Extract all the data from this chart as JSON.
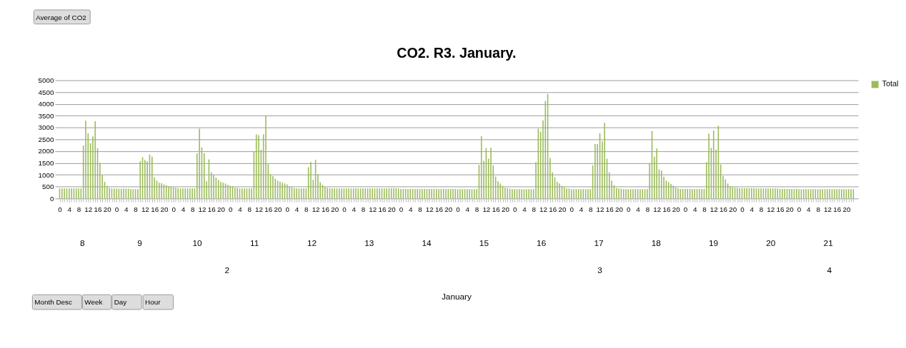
{
  "chart_data": {
    "type": "bar",
    "title": "CO2. R3. January.",
    "categories": [
      "0",
      null,
      null,
      null,
      "4",
      null,
      null,
      null,
      "8",
      null,
      null,
      null,
      "12",
      null,
      null,
      null,
      "16",
      null,
      null,
      null,
      "20",
      null,
      null,
      null,
      "0",
      null,
      null,
      null,
      "4",
      null,
      null,
      null,
      "8",
      null,
      null,
      null,
      "12",
      null,
      null,
      null,
      "16",
      null,
      null,
      null,
      "20",
      null,
      null,
      null,
      "0",
      null,
      null,
      null,
      "4",
      null,
      null,
      null,
      "8",
      null,
      null,
      null,
      "12",
      null,
      null,
      null,
      "16",
      null,
      null,
      null,
      "20",
      null,
      null,
      null,
      "0",
      null,
      null,
      null,
      "4",
      null,
      null,
      null,
      "8",
      null,
      null,
      null,
      "12",
      null,
      null,
      null,
      "16",
      null,
      null,
      null,
      "20",
      null,
      null,
      null,
      "0",
      null,
      null,
      null,
      "4",
      null,
      null,
      null,
      "8",
      null,
      null,
      null,
      "12",
      null,
      null,
      null,
      "16",
      null,
      null,
      null,
      "20",
      null,
      null,
      null,
      "0",
      null,
      null,
      null,
      "4",
      null,
      null,
      null,
      "8",
      null,
      null,
      null,
      "12",
      null,
      null,
      null,
      "16",
      null,
      null,
      null,
      "20",
      null,
      null,
      null,
      "0",
      null,
      null,
      null,
      "4",
      null,
      null,
      null,
      "8",
      null,
      null,
      null,
      "12",
      null,
      null,
      null,
      "16",
      null,
      null,
      null,
      "20",
      null,
      null,
      null,
      "0",
      null,
      null,
      null,
      "4",
      null,
      null,
      null,
      "8",
      null,
      null,
      null,
      "12",
      null,
      null,
      null,
      "16",
      null,
      null,
      null,
      "20",
      null,
      null,
      null,
      "0",
      null,
      null,
      null,
      "4",
      null,
      null,
      null,
      "8",
      null,
      null,
      null,
      "12",
      null,
      null,
      null,
      "16",
      null,
      null,
      null,
      "20",
      null,
      null,
      null,
      "0",
      null,
      null,
      null,
      "4",
      null,
      null,
      null,
      "8",
      null,
      null,
      null,
      "12",
      null,
      null,
      null,
      "16",
      null,
      null,
      null,
      "20",
      null,
      null,
      null,
      "0",
      null,
      null,
      null,
      "4",
      null,
      null,
      null,
      "8",
      null,
      null,
      null,
      "12",
      null,
      null,
      null,
      "16",
      null,
      null,
      null,
      "20",
      null,
      null,
      null,
      "0",
      null,
      null,
      null,
      "4",
      null,
      null,
      null,
      "8",
      null,
      null,
      null,
      "12",
      null,
      null,
      null,
      "16",
      null,
      null,
      null,
      "20",
      null,
      null,
      null,
      "0",
      null,
      null,
      null,
      "4",
      null,
      null,
      null,
      "8",
      null,
      null,
      null,
      "12",
      null,
      null,
      null,
      "16",
      null,
      null,
      null,
      "20",
      null,
      null,
      null,
      "0",
      null,
      null,
      null,
      "4",
      null,
      null,
      null,
      "8",
      null,
      null,
      null,
      "12",
      null,
      null,
      null,
      "16",
      null,
      null,
      null,
      "20",
      null,
      null,
      null
    ],
    "series": [
      {
        "name": "Total",
        "color": "#9bbb59",
        "values": [
          420,
          420,
          420,
          420,
          420,
          420,
          420,
          420,
          420,
          420,
          2235,
          3290,
          2755,
          2330,
          2625,
          3265,
          2125,
          1500,
          980,
          700,
          530,
          440,
          420,
          420,
          410,
          410,
          410,
          410,
          410,
          410,
          390,
          390,
          390,
          390,
          1570,
          1745,
          1630,
          1570,
          1860,
          1765,
          890,
          755,
          665,
          645,
          590,
          560,
          510,
          490,
          470,
          450,
          430,
          420,
          420,
          420,
          420,
          420,
          420,
          420,
          1910,
          2950,
          2160,
          1910,
          725,
          1650,
          1100,
          980,
          880,
          775,
          700,
          665,
          630,
          570,
          530,
          510,
          450,
          450,
          420,
          420,
          420,
          420,
          420,
          420,
          1990,
          2710,
          2680,
          2060,
          2710,
          3490,
          1450,
          1030,
          940,
          830,
          755,
          705,
          665,
          630,
          590,
          510,
          470,
          430,
          420,
          420,
          420,
          420,
          420,
          1320,
          1540,
          785,
          1630,
          1030,
          685,
          570,
          480,
          440,
          430,
          420,
          420,
          420,
          420,
          420,
          420,
          420,
          420,
          420,
          420,
          420,
          420,
          420,
          420,
          420,
          420,
          420,
          420,
          420,
          420,
          420,
          420,
          420,
          420,
          430,
          430,
          430,
          430,
          420,
          400,
          400,
          400,
          400,
          400,
          400,
          400,
          400,
          400,
          400,
          400,
          400,
          400,
          400,
          400,
          400,
          400,
          400,
          400,
          400,
          400,
          400,
          400,
          400,
          390,
          390,
          390,
          390,
          390,
          390,
          390,
          390,
          390,
          1420,
          2630,
          1590,
          2130,
          1680,
          2140,
          1400,
          920,
          725,
          630,
          530,
          450,
          430,
          410,
          390,
          390,
          390,
          390,
          390,
          390,
          390,
          390,
          390,
          390,
          1540,
          2950,
          2820,
          3300,
          4120,
          4420,
          1710,
          1100,
          890,
          700,
          630,
          530,
          470,
          420,
          420,
          390,
          390,
          390,
          390,
          390,
          390,
          390,
          390,
          390,
          1400,
          2300,
          2300,
          2760,
          2410,
          3200,
          1680,
          1100,
          755,
          560,
          440,
          420,
          410,
          390,
          390,
          390,
          390,
          390,
          390,
          390,
          390,
          390,
          390,
          390,
          1490,
          2850,
          1765,
          2110,
          1225,
          1185,
          920,
          755,
          685,
          610,
          540,
          480,
          430,
          400,
          400,
          400,
          400,
          400,
          400,
          400,
          400,
          400,
          400,
          400,
          1540,
          2745,
          2140,
          2870,
          2060,
          3070,
          1430,
          950,
          800,
          630,
          510,
          470,
          450,
          440,
          430,
          430,
          430,
          430,
          430,
          430,
          430,
          420,
          420,
          420,
          420,
          420,
          420,
          420,
          420,
          420,
          420,
          400,
          400,
          400,
          400,
          400,
          400,
          400,
          400,
          390,
          390,
          390,
          390,
          390,
          390,
          390,
          390,
          390,
          390,
          390,
          390,
          390,
          390,
          390,
          390,
          390,
          390,
          390,
          390,
          390,
          390,
          390,
          390
        ]
      }
    ],
    "ylim": [
      0,
      5000
    ],
    "yticks": [
      0,
      500,
      1000,
      1500,
      2000,
      2500,
      3000,
      3500,
      4000,
      4500,
      5000
    ],
    "grid": "y",
    "legend": "right",
    "annotations": [
      "Average of CO2",
      "8",
      "9",
      "10",
      "11",
      "12",
      "13",
      "14",
      "15",
      "16",
      "17",
      "18",
      "19",
      "20",
      "21",
      "2",
      "3",
      "4",
      "January",
      "Month Desc",
      "Week",
      "Day",
      "Hour"
    ]
  }
}
